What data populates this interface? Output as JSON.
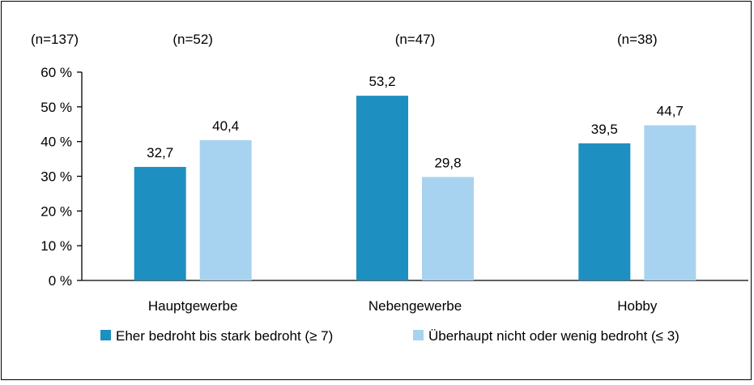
{
  "chart_data": {
    "type": "bar",
    "total_n": "(n=137)",
    "categories": [
      "Hauptgewerbe",
      "Nebengewerbe",
      "Hobby"
    ],
    "category_n": [
      "(n=52)",
      "(n=47)",
      "(n=38)"
    ],
    "series": [
      {
        "name": "Eher bedroht bis stark bedroht (≥ 7)",
        "color": "#1e8fc1",
        "values": [
          32.7,
          53.2,
          39.5
        ],
        "labels": [
          "32,7",
          "53,2",
          "39,5"
        ]
      },
      {
        "name": "Überhaupt nicht oder wenig bedroht (≤ 3)",
        "color": "#a8d3f0",
        "values": [
          40.4,
          29.8,
          44.7
        ],
        "labels": [
          "40,4",
          "29,8",
          "44,7"
        ]
      }
    ],
    "ylim": [
      0,
      60
    ],
    "yticks": [
      0,
      10,
      20,
      30,
      40,
      50,
      60
    ],
    "ytick_labels": [
      "0 %",
      "10 %",
      "20 %",
      "30 %",
      "40 %",
      "50 %",
      "60 %"
    ],
    "grid": false,
    "legend_position": "bottom"
  }
}
